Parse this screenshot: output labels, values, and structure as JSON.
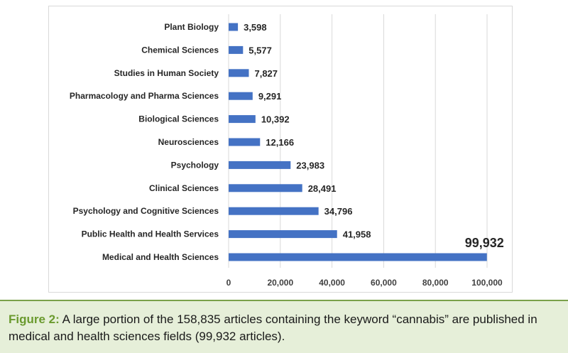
{
  "chart_data": {
    "type": "bar",
    "orientation": "horizontal",
    "categories": [
      "Plant Biology",
      "Chemical Sciences",
      "Studies in Human Society",
      "Pharmacology and Pharma Sciences",
      "Biological Sciences",
      "Neurosciences",
      "Psychology",
      "Clinical Sciences",
      "Psychology and Cognitive Sciences",
      "Public Health and Health Services",
      "Medical and Health Sciences"
    ],
    "values": [
      3598,
      5577,
      7827,
      9291,
      10392,
      12166,
      23983,
      28491,
      34796,
      41958,
      99932
    ],
    "value_labels": [
      "3,598",
      "5,577",
      "7,827",
      "9,291",
      "10,392",
      "12,166",
      "23,983",
      "28,491",
      "34,796",
      "41,958",
      "99,932"
    ],
    "xlim": [
      0,
      100000
    ],
    "x_ticks": [
      0,
      20000,
      40000,
      60000,
      80000,
      100000
    ],
    "x_tick_labels": [
      "0",
      "20,000",
      "40,000",
      "60,000",
      "80,000",
      "100,000"
    ],
    "grid": true,
    "bar_color": "#4472c4",
    "title": "",
    "xlabel": "",
    "ylabel": ""
  },
  "caption": {
    "label": "Figure 2:",
    "text": " A large portion of the 158,835 articles containing the keyword “cannabis” are published in medical and health sciences fields (99,932 articles).",
    "label_color": "#6a9a2e",
    "band_color": "#e6efd9"
  }
}
